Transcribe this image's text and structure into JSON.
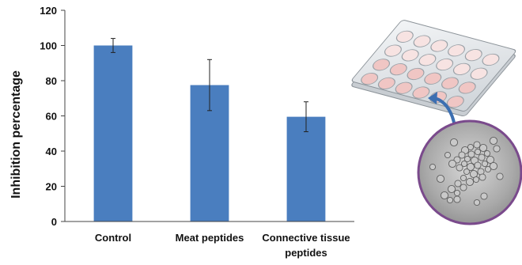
{
  "chart_data": {
    "type": "bar",
    "title": "",
    "xlabel": "",
    "ylabel": "Inhibition percentage",
    "categories": [
      "Control",
      "Meat peptides",
      "Connective tissue peptides"
    ],
    "category_lines": [
      [
        "Control"
      ],
      [
        "Meat peptides"
      ],
      [
        "Connective tissue",
        "peptides"
      ]
    ],
    "values": [
      100,
      77.5,
      59.5
    ],
    "error_low": [
      96,
      63,
      51
    ],
    "error_high": [
      104,
      92,
      68
    ],
    "ylim": [
      0,
      120
    ],
    "yticks": [
      0,
      20,
      40,
      60,
      80,
      100,
      120
    ],
    "grid": false,
    "legend": "none",
    "bar_color": "#4a7ebf"
  },
  "illustration": {
    "plate_icon": "24-well-plate-icon",
    "arrow_icon": "curved-arrow-icon",
    "micrograph": "cell-micrograph-icon",
    "accent_color": "#7a4a8c",
    "arrow_color": "#3c6fb1"
  }
}
